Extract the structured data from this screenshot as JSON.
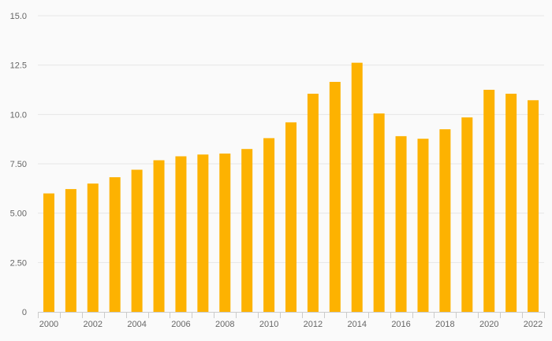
{
  "chart_data": {
    "type": "bar",
    "title": "",
    "xlabel": "",
    "ylabel": "",
    "categories": [
      "2000",
      "2001",
      "2002",
      "2003",
      "2004",
      "2005",
      "2006",
      "2007",
      "2008",
      "2009",
      "2010",
      "2011",
      "2012",
      "2013",
      "2014",
      "2015",
      "2016",
      "2017",
      "2018",
      "2019",
      "2020",
      "2021",
      "2022"
    ],
    "x_tick_labels": [
      "2000",
      "2002",
      "2004",
      "2006",
      "2008",
      "2010",
      "2012",
      "2014",
      "2016",
      "2018",
      "2020",
      "2022"
    ],
    "values": [
      6.0,
      6.22,
      6.5,
      6.82,
      7.2,
      7.68,
      7.88,
      7.97,
      8.02,
      8.25,
      8.8,
      9.6,
      11.05,
      11.65,
      12.62,
      10.05,
      8.9,
      8.77,
      9.25,
      9.85,
      11.25,
      11.05,
      10.72
    ],
    "ylim": [
      0,
      15
    ],
    "y_ticks": [
      {
        "value": 0,
        "label": "0"
      },
      {
        "value": 2.5,
        "label": "2.50"
      },
      {
        "value": 5,
        "label": "5.00"
      },
      {
        "value": 7.5,
        "label": "7.50"
      },
      {
        "value": 10,
        "label": "10.0"
      },
      {
        "value": 12.5,
        "label": "12.5"
      },
      {
        "value": 15,
        "label": "15.0"
      }
    ],
    "grid": true,
    "legend": "none",
    "colors": {
      "bar": "#FDB201",
      "grid": "#e6e6e6",
      "axis": "#cccccc",
      "text": "#666666"
    }
  }
}
